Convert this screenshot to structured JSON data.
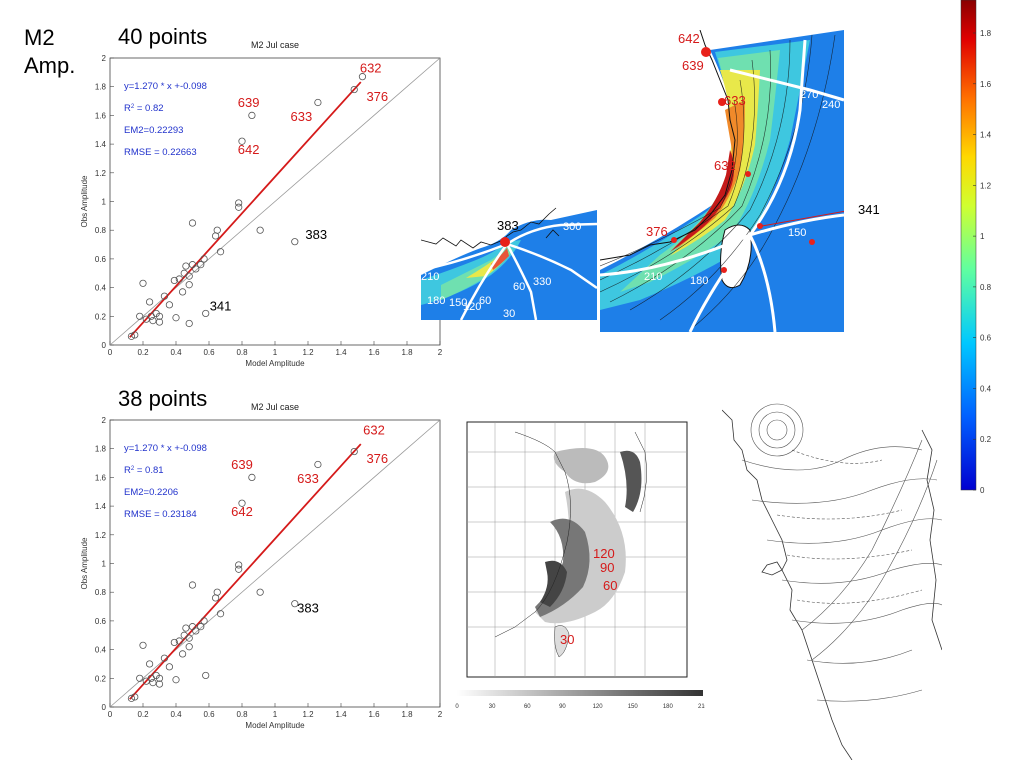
{
  "header": {
    "line1": "M2",
    "line2": "Amp."
  },
  "chart_data": [
    {
      "type": "scatter",
      "label": "40 points",
      "title": "M2 Jul case",
      "xlabel": "Model Amplitude",
      "ylabel": "Obs Amplitude",
      "xlim": [
        0,
        2
      ],
      "ylim": [
        0,
        2
      ],
      "xticks": [
        "0",
        "0.2",
        "0.4",
        "0.6",
        "0.8",
        "1",
        "1.2",
        "1.4",
        "1.6",
        "1.8",
        "2"
      ],
      "yticks": [
        "0",
        "0.2",
        "0.4",
        "0.6",
        "0.8",
        "1",
        "1.2",
        "1.4",
        "1.6",
        "1.8",
        "2"
      ],
      "stats": [
        "y=1.270 * x +-0.098",
        "R2 = 0.82",
        "EM2=0.22293",
        "RMSE = 0.22663"
      ],
      "fit": {
        "slope": 1.27,
        "intercept": -0.098,
        "x": [
          0.12,
          1.52
        ]
      },
      "points": [
        [
          0.13,
          0.06
        ],
        [
          0.15,
          0.07
        ],
        [
          0.18,
          0.2
        ],
        [
          0.2,
          0.43
        ],
        [
          0.22,
          0.18
        ],
        [
          0.24,
          0.3
        ],
        [
          0.25,
          0.2
        ],
        [
          0.26,
          0.17
        ],
        [
          0.28,
          0.22
        ],
        [
          0.3,
          0.2
        ],
        [
          0.3,
          0.16
        ],
        [
          0.33,
          0.34
        ],
        [
          0.36,
          0.28
        ],
        [
          0.39,
          0.45
        ],
        [
          0.4,
          0.19
        ],
        [
          0.42,
          0.46
        ],
        [
          0.44,
          0.37
        ],
        [
          0.45,
          0.5
        ],
        [
          0.46,
          0.55
        ],
        [
          0.48,
          0.48
        ],
        [
          0.48,
          0.42
        ],
        [
          0.5,
          0.56
        ],
        [
          0.52,
          0.53
        ],
        [
          0.55,
          0.56
        ],
        [
          0.57,
          0.6
        ],
        [
          0.58,
          0.22
        ],
        [
          0.64,
          0.76
        ],
        [
          0.65,
          0.8
        ],
        [
          0.67,
          0.65
        ],
        [
          0.78,
          0.96
        ],
        [
          0.78,
          0.99
        ],
        [
          0.91,
          0.8
        ],
        [
          0.5,
          0.85
        ],
        [
          0.8,
          1.42
        ],
        [
          0.86,
          1.6
        ],
        [
          1.12,
          0.72
        ],
        [
          1.26,
          1.69
        ],
        [
          1.48,
          1.78
        ],
        [
          1.53,
          1.87
        ],
        [
          0.48,
          0.15
        ]
      ],
      "annotations": [
        {
          "text": "632",
          "x": 1.58,
          "y": 1.9,
          "color": "red"
        },
        {
          "text": "376",
          "x": 1.62,
          "y": 1.7,
          "color": "red"
        },
        {
          "text": "639",
          "x": 0.84,
          "y": 1.66,
          "color": "red"
        },
        {
          "text": "633",
          "x": 1.16,
          "y": 1.56,
          "color": "red"
        },
        {
          "text": "642",
          "x": 0.84,
          "y": 1.33,
          "color": "red"
        },
        {
          "text": "383",
          "x": 1.25,
          "y": 0.74,
          "color": "black"
        },
        {
          "text": "341",
          "x": 0.67,
          "y": 0.24,
          "color": "black"
        }
      ]
    },
    {
      "type": "scatter",
      "label": "38 points",
      "title": "M2 Jul case",
      "xlabel": "Model Amplitude",
      "ylabel": "Obs Amplitude",
      "xlim": [
        0,
        2
      ],
      "ylim": [
        0,
        2
      ],
      "xticks": [
        "0",
        "0.2",
        "0.4",
        "0.6",
        "0.8",
        "1",
        "1.2",
        "1.4",
        "1.6",
        "1.8",
        "2"
      ],
      "yticks": [
        "0",
        "0.2",
        "0.4",
        "0.6",
        "0.8",
        "1",
        "1.2",
        "1.4",
        "1.6",
        "1.8",
        "2"
      ],
      "stats": [
        "y=1.270 * x +-0.098",
        "R2 = 0.81",
        "EM2=0.2206",
        "RMSE = 0.23184"
      ],
      "fit": {
        "slope": 1.27,
        "intercept": -0.098,
        "x": [
          0.12,
          1.52
        ]
      },
      "points": [
        [
          0.13,
          0.06
        ],
        [
          0.15,
          0.07
        ],
        [
          0.18,
          0.2
        ],
        [
          0.2,
          0.43
        ],
        [
          0.22,
          0.18
        ],
        [
          0.24,
          0.3
        ],
        [
          0.25,
          0.2
        ],
        [
          0.26,
          0.17
        ],
        [
          0.28,
          0.22
        ],
        [
          0.3,
          0.2
        ],
        [
          0.3,
          0.16
        ],
        [
          0.33,
          0.34
        ],
        [
          0.36,
          0.28
        ],
        [
          0.39,
          0.45
        ],
        [
          0.4,
          0.19
        ],
        [
          0.42,
          0.46
        ],
        [
          0.44,
          0.37
        ],
        [
          0.45,
          0.5
        ],
        [
          0.46,
          0.55
        ],
        [
          0.48,
          0.48
        ],
        [
          0.48,
          0.42
        ],
        [
          0.5,
          0.56
        ],
        [
          0.52,
          0.53
        ],
        [
          0.55,
          0.56
        ],
        [
          0.57,
          0.6
        ],
        [
          0.58,
          0.22
        ],
        [
          0.64,
          0.76
        ],
        [
          0.65,
          0.8
        ],
        [
          0.67,
          0.65
        ],
        [
          0.78,
          0.96
        ],
        [
          0.78,
          0.99
        ],
        [
          0.91,
          0.8
        ],
        [
          0.5,
          0.85
        ],
        [
          0.8,
          1.42
        ],
        [
          0.86,
          1.6
        ],
        [
          1.12,
          0.72
        ],
        [
          1.26,
          1.69
        ],
        [
          1.48,
          1.78
        ]
      ],
      "annotations": [
        {
          "text": "632",
          "x": 1.6,
          "y": 1.9,
          "color": "red"
        },
        {
          "text": "376",
          "x": 1.62,
          "y": 1.7,
          "color": "red"
        },
        {
          "text": "639",
          "x": 0.8,
          "y": 1.66,
          "color": "red"
        },
        {
          "text": "633",
          "x": 1.2,
          "y": 1.56,
          "color": "red"
        },
        {
          "text": "642",
          "x": 0.8,
          "y": 1.33,
          "color": "red"
        },
        {
          "text": "383",
          "x": 1.2,
          "y": 0.66,
          "color": "black"
        }
      ]
    }
  ],
  "map_small": {
    "labels": [
      "383",
      "300",
      "330",
      "60",
      "30",
      "180",
      "150",
      "120",
      "60",
      "210"
    ]
  },
  "map_large": {
    "labels": [
      "642",
      "639",
      "633",
      "632",
      "376",
      "341",
      "270",
      "240",
      "210",
      "180",
      "150"
    ]
  },
  "gray_map": {
    "labels": [
      "120",
      "90",
      "60",
      "30"
    ],
    "scale": [
      "0",
      "30",
      "60",
      "90",
      "120",
      "150",
      "180",
      "210"
    ]
  },
  "colorbar": {
    "ticks": [
      "1.8",
      "1.6",
      "1.4",
      "1.2",
      "1",
      "0.8",
      "0.6",
      "0.4",
      "0.2",
      "0"
    ]
  }
}
